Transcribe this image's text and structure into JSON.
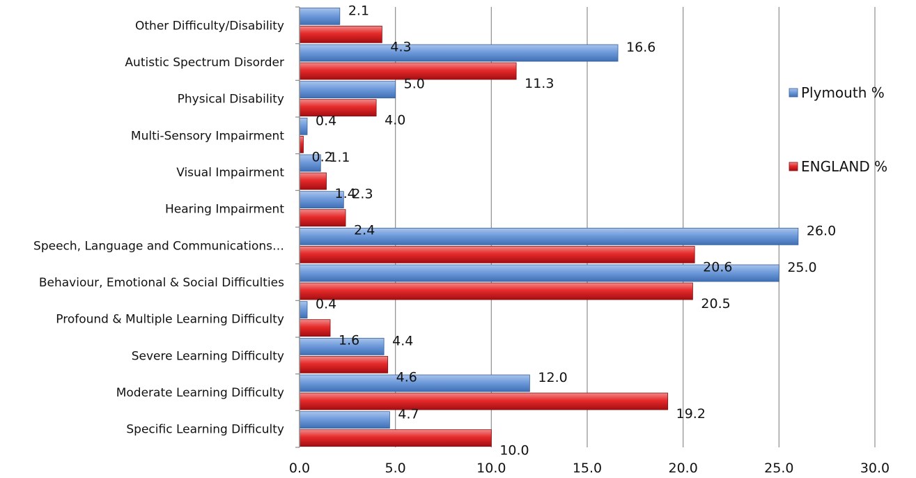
{
  "chart_data": {
    "type": "bar",
    "orientation": "horizontal",
    "categories": [
      "Other Difficulty/Disability",
      "Autistic Spectrum Disorder",
      "Physical Disability",
      "Multi-Sensory Impairment",
      "Visual Impairment",
      "Hearing Impairment",
      "Speech, Language and Communications…",
      "Behaviour, Emotional & Social Difficulties",
      "Profound & Multiple Learning Difficulty",
      "Severe Learning Difficulty",
      "Moderate Learning Difficulty",
      "Specific Learning Difficulty"
    ],
    "series": [
      {
        "name": "Plymouth %",
        "color": "#4f81bd",
        "values": [
          2.1,
          16.6,
          5.0,
          0.4,
          1.1,
          2.3,
          26.0,
          25.0,
          0.4,
          4.4,
          12.0,
          4.7
        ]
      },
      {
        "name": "ENGLAND %",
        "color": "#e0242a",
        "values": [
          4.3,
          11.3,
          4.0,
          0.2,
          1.4,
          2.4,
          20.6,
          20.5,
          1.6,
          4.6,
          19.2,
          10.0
        ]
      }
    ],
    "xlim": [
      0,
      30
    ],
    "xticks": [
      "0.0",
      "5.0",
      "10.0",
      "15.0",
      "20.0",
      "25.0",
      "30.0"
    ],
    "grid": "vertical",
    "legend": "right"
  }
}
